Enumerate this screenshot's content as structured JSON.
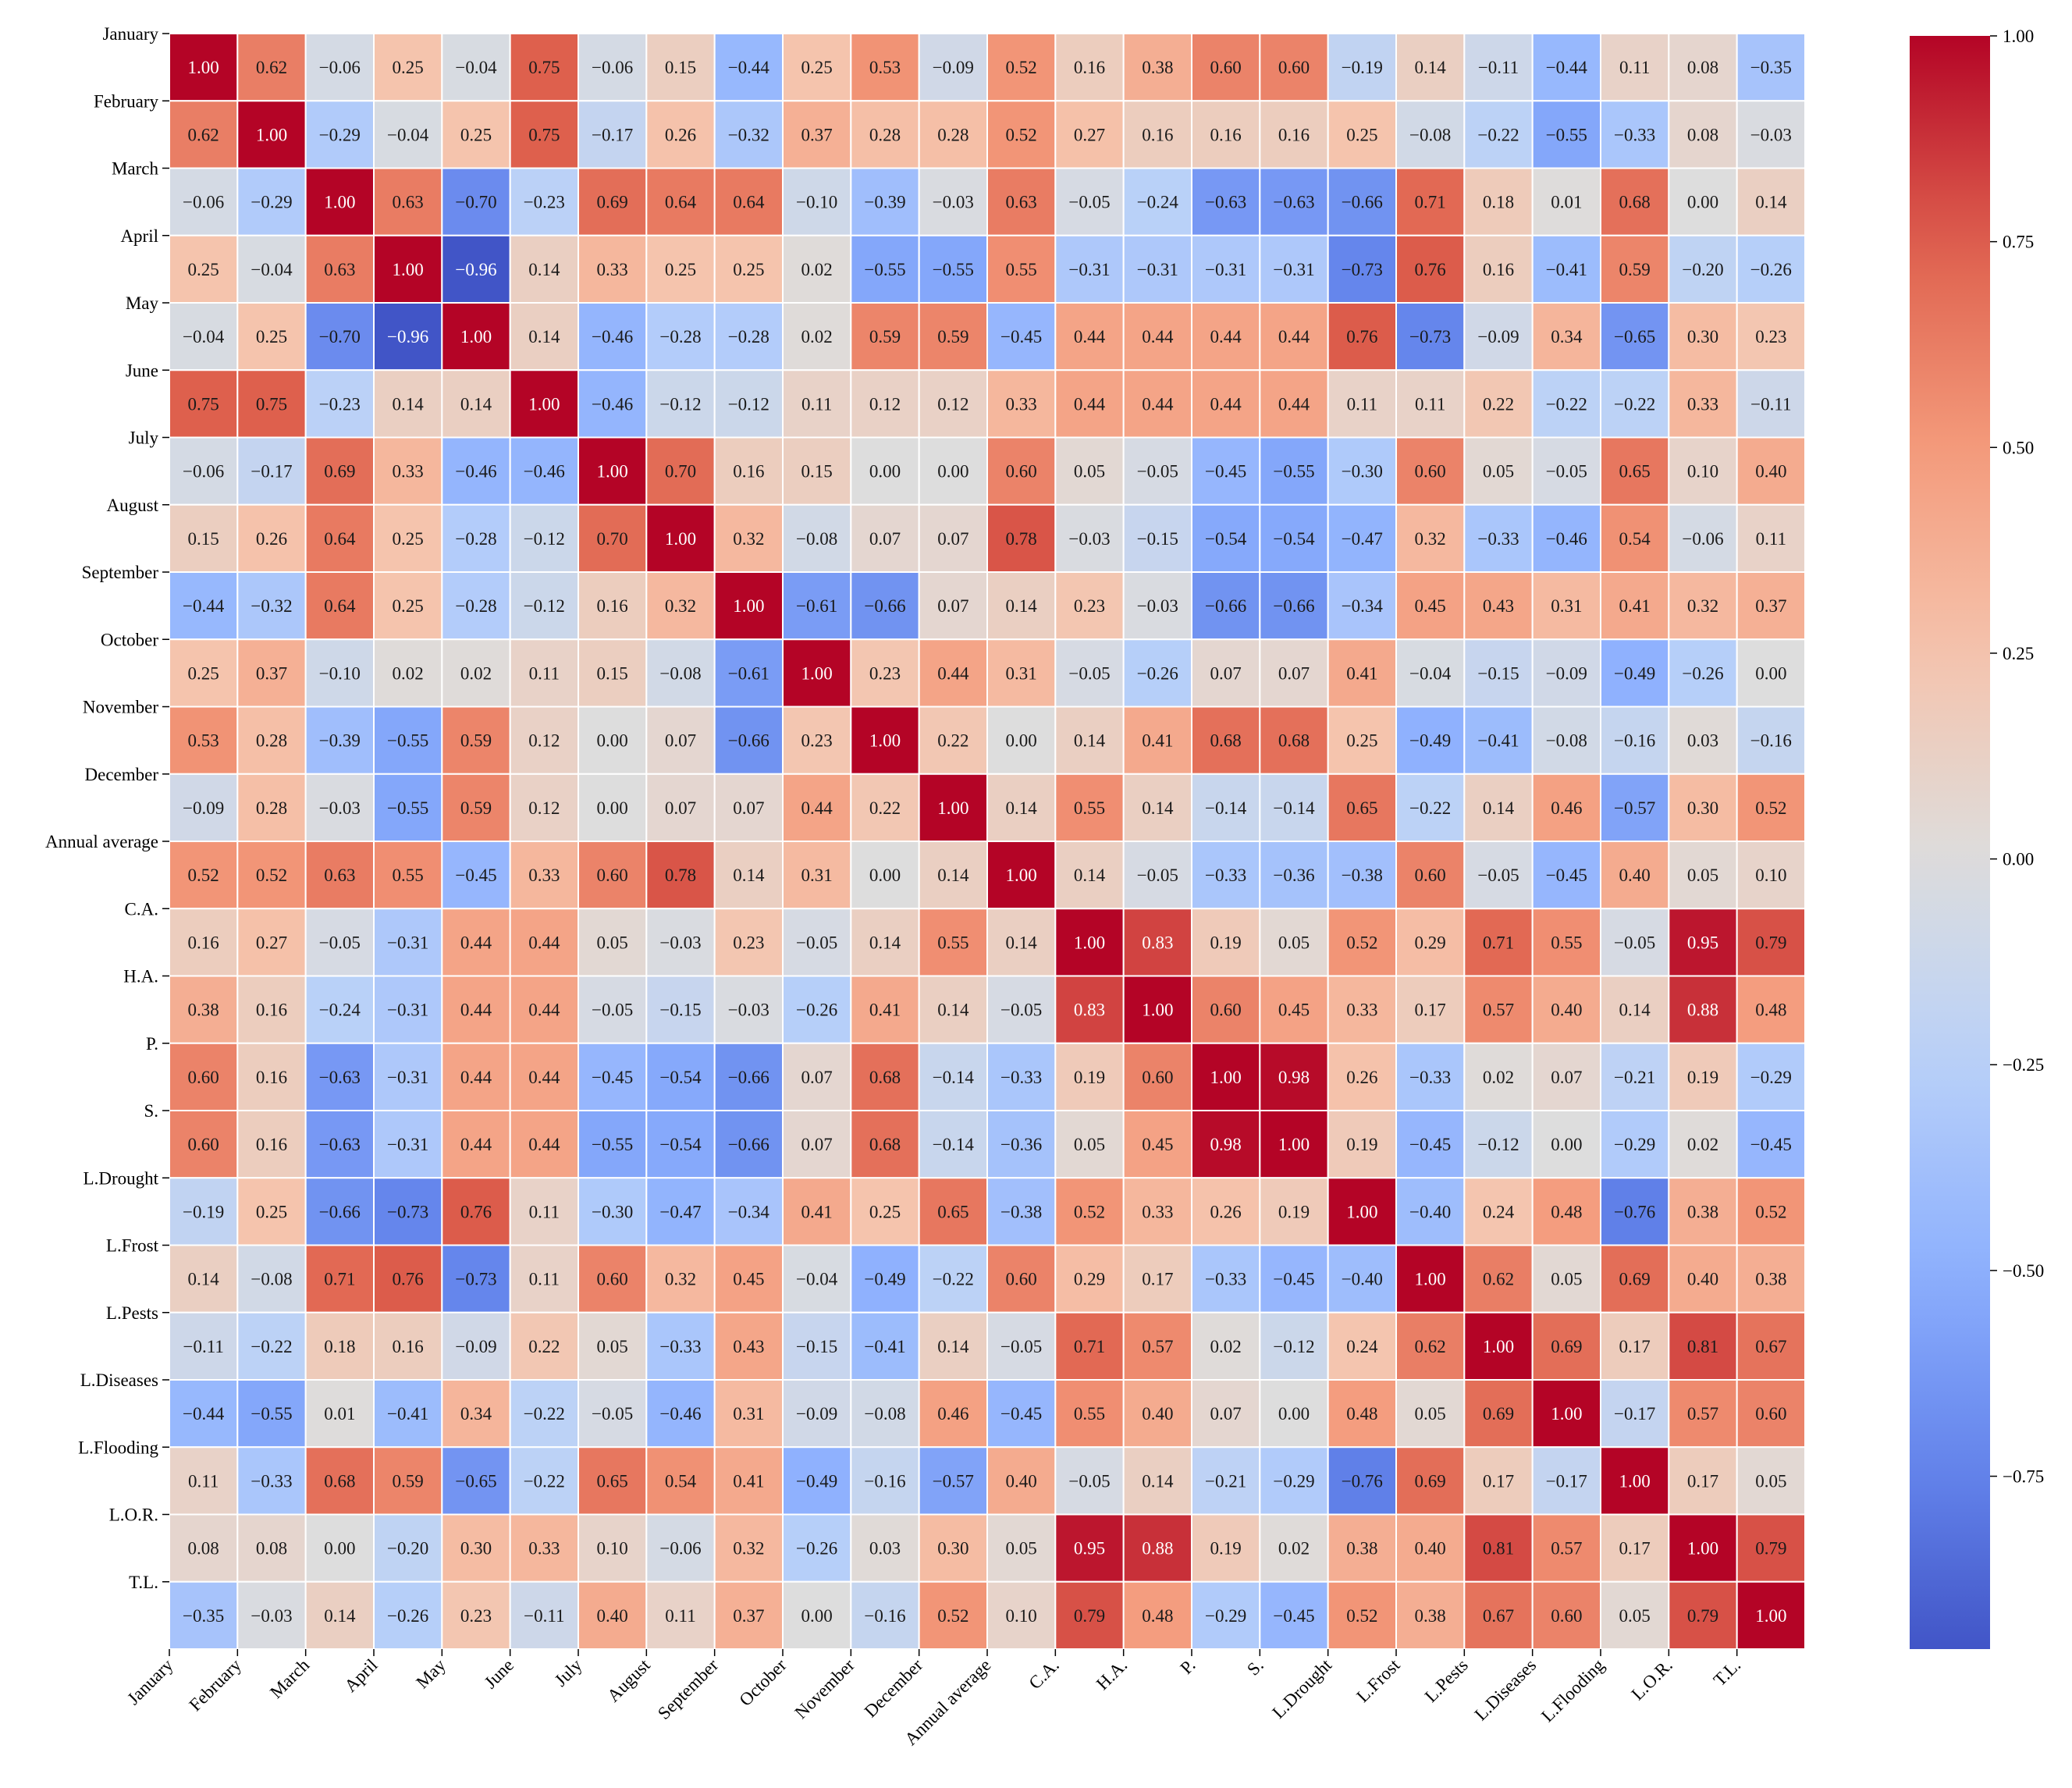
{
  "chart_data": {
    "type": "heatmap",
    "title": "",
    "xlabel": "",
    "ylabel": "",
    "labels": [
      "January",
      "February",
      "March",
      "April",
      "May",
      "June",
      "July",
      "August",
      "September",
      "October",
      "November",
      "December",
      "Annual average",
      "C.A.",
      "H.A.",
      "P.",
      "S.",
      "L.Drought",
      "L.Frost",
      "L.Pests",
      "L.Diseases",
      "L.Flooding",
      "L.O.R.",
      "T.L."
    ],
    "value_labels": [
      [
        "1.00",
        "0.62",
        "−0.06",
        "0.25",
        "−0.04",
        "0.75",
        "−0.06",
        "0.15",
        "−0.44",
        "0.25",
        "0.53",
        "−0.09",
        "0.52",
        "0.16",
        "0.38",
        "0.60",
        "0.60",
        "−0.19",
        "0.14",
        "−0.11",
        "−0.44",
        "0.11",
        "0.08",
        "−0.35"
      ],
      [
        "0.62",
        "1.00",
        "−0.29",
        "−0.04",
        "0.25",
        "0.75",
        "−0.17",
        "0.26",
        "−0.32",
        "0.37",
        "0.28",
        "0.28",
        "0.52",
        "0.27",
        "0.16",
        "0.16",
        "0.16",
        "0.25",
        "−0.08",
        "−0.22",
        "−0.55",
        "−0.33",
        "0.08",
        "−0.03"
      ],
      [
        "−0.06",
        "−0.29",
        "1.00",
        "0.63",
        "−0.70",
        "−0.23",
        "0.69",
        "0.64",
        "0.64",
        "−0.10",
        "−0.39",
        "−0.03",
        "0.63",
        "−0.05",
        "−0.24",
        "−0.63",
        "−0.63",
        "−0.66",
        "0.71",
        "0.18",
        "0.01",
        "0.68",
        "0.00",
        "0.14"
      ],
      [
        "0.25",
        "−0.04",
        "0.63",
        "1.00",
        "−0.96",
        "0.14",
        "0.33",
        "0.25",
        "0.25",
        "0.02",
        "−0.55",
        "−0.55",
        "0.55",
        "−0.31",
        "−0.31",
        "−0.31",
        "−0.31",
        "−0.73",
        "0.76",
        "0.16",
        "−0.41",
        "0.59",
        "−0.20",
        "−0.26"
      ],
      [
        "−0.04",
        "0.25",
        "−0.70",
        "−0.96",
        "1.00",
        "0.14",
        "−0.46",
        "−0.28",
        "−0.28",
        "0.02",
        "0.59",
        "0.59",
        "−0.45",
        "0.44",
        "0.44",
        "0.44",
        "0.44",
        "0.76",
        "−0.73",
        "−0.09",
        "0.34",
        "−0.65",
        "0.30",
        "0.23"
      ],
      [
        "0.75",
        "0.75",
        "−0.23",
        "0.14",
        "0.14",
        "1.00",
        "−0.46",
        "−0.12",
        "−0.12",
        "0.11",
        "0.12",
        "0.12",
        "0.33",
        "0.44",
        "0.44",
        "0.44",
        "0.44",
        "0.11",
        "0.11",
        "0.22",
        "−0.22",
        "−0.22",
        "0.33",
        "−0.11"
      ],
      [
        "−0.06",
        "−0.17",
        "0.69",
        "0.33",
        "−0.46",
        "−0.46",
        "1.00",
        "0.70",
        "0.16",
        "0.15",
        "0.00",
        "0.00",
        "0.60",
        "0.05",
        "−0.05",
        "−0.45",
        "−0.55",
        "−0.30",
        "0.60",
        "0.05",
        "−0.05",
        "0.65",
        "0.10",
        "0.40"
      ],
      [
        "0.15",
        "0.26",
        "0.64",
        "0.25",
        "−0.28",
        "−0.12",
        "0.70",
        "1.00",
        "0.32",
        "−0.08",
        "0.07",
        "0.07",
        "0.78",
        "−0.03",
        "−0.15",
        "−0.54",
        "−0.54",
        "−0.47",
        "0.32",
        "−0.33",
        "−0.46",
        "0.54",
        "−0.06",
        "0.11"
      ],
      [
        "−0.44",
        "−0.32",
        "0.64",
        "0.25",
        "−0.28",
        "−0.12",
        "0.16",
        "0.32",
        "1.00",
        "−0.61",
        "−0.66",
        "0.07",
        "0.14",
        "0.23",
        "−0.03",
        "−0.66",
        "−0.66",
        "−0.34",
        "0.45",
        "0.43",
        "0.31",
        "0.41",
        "0.32",
        "0.37"
      ],
      [
        "0.25",
        "0.37",
        "−0.10",
        "0.02",
        "0.02",
        "0.11",
        "0.15",
        "−0.08",
        "−0.61",
        "1.00",
        "0.23",
        "0.44",
        "0.31",
        "−0.05",
        "−0.26",
        "0.07",
        "0.07",
        "0.41",
        "−0.04",
        "−0.15",
        "−0.09",
        "−0.49",
        "−0.26",
        "0.00"
      ],
      [
        "0.53",
        "0.28",
        "−0.39",
        "−0.55",
        "0.59",
        "0.12",
        "0.00",
        "0.07",
        "−0.66",
        "0.23",
        "1.00",
        "0.22",
        "0.00",
        "0.14",
        "0.41",
        "0.68",
        "0.68",
        "0.25",
        "−0.49",
        "−0.41",
        "−0.08",
        "−0.16",
        "0.03",
        "−0.16"
      ],
      [
        "−0.09",
        "0.28",
        "−0.03",
        "−0.55",
        "0.59",
        "0.12",
        "0.00",
        "0.07",
        "0.07",
        "0.44",
        "0.22",
        "1.00",
        "0.14",
        "0.55",
        "0.14",
        "−0.14",
        "−0.14",
        "0.65",
        "−0.22",
        "0.14",
        "0.46",
        "−0.57",
        "0.30",
        "0.52"
      ],
      [
        "0.52",
        "0.52",
        "0.63",
        "0.55",
        "−0.45",
        "0.33",
        "0.60",
        "0.78",
        "0.14",
        "0.31",
        "0.00",
        "0.14",
        "1.00",
        "0.14",
        "−0.05",
        "−0.33",
        "−0.36",
        "−0.38",
        "0.60",
        "−0.05",
        "−0.45",
        "0.40",
        "0.05",
        "0.10"
      ],
      [
        "0.16",
        "0.27",
        "−0.05",
        "−0.31",
        "0.44",
        "0.44",
        "0.05",
        "−0.03",
        "0.23",
        "−0.05",
        "0.14",
        "0.55",
        "0.14",
        "1.00",
        "0.83",
        "0.19",
        "0.05",
        "0.52",
        "0.29",
        "0.71",
        "0.55",
        "−0.05",
        "0.95",
        "0.79"
      ],
      [
        "0.38",
        "0.16",
        "−0.24",
        "−0.31",
        "0.44",
        "0.44",
        "−0.05",
        "−0.15",
        "−0.03",
        "−0.26",
        "0.41",
        "0.14",
        "−0.05",
        "0.83",
        "1.00",
        "0.60",
        "0.45",
        "0.33",
        "0.17",
        "0.57",
        "0.40",
        "0.14",
        "0.88",
        "0.48"
      ],
      [
        "0.60",
        "0.16",
        "−0.63",
        "−0.31",
        "0.44",
        "0.44",
        "−0.45",
        "−0.54",
        "−0.66",
        "0.07",
        "0.68",
        "−0.14",
        "−0.33",
        "0.19",
        "0.60",
        "1.00",
        "0.98",
        "0.26",
        "−0.33",
        "0.02",
        "0.07",
        "−0.21",
        "0.19",
        "−0.29"
      ],
      [
        "0.60",
        "0.16",
        "−0.63",
        "−0.31",
        "0.44",
        "0.44",
        "−0.55",
        "−0.54",
        "−0.66",
        "0.07",
        "0.68",
        "−0.14",
        "−0.36",
        "0.05",
        "0.45",
        "0.98",
        "1.00",
        "0.19",
        "−0.45",
        "−0.12",
        "0.00",
        "−0.29",
        "0.02",
        "−0.45"
      ],
      [
        "−0.19",
        "0.25",
        "−0.66",
        "−0.73",
        "0.76",
        "0.11",
        "−0.30",
        "−0.47",
        "−0.34",
        "0.41",
        "0.25",
        "0.65",
        "−0.38",
        "0.52",
        "0.33",
        "0.26",
        "0.19",
        "1.00",
        "−0.40",
        "0.24",
        "0.48",
        "−0.76",
        "0.38",
        "0.52"
      ],
      [
        "0.14",
        "−0.08",
        "0.71",
        "0.76",
        "−0.73",
        "0.11",
        "0.60",
        "0.32",
        "0.45",
        "−0.04",
        "−0.49",
        "−0.22",
        "0.60",
        "0.29",
        "0.17",
        "−0.33",
        "−0.45",
        "−0.40",
        "1.00",
        "0.62",
        "0.05",
        "0.69",
        "0.40",
        "0.38"
      ],
      [
        "−0.11",
        "−0.22",
        "0.18",
        "0.16",
        "−0.09",
        "0.22",
        "0.05",
        "−0.33",
        "0.43",
        "−0.15",
        "−0.41",
        "0.14",
        "−0.05",
        "0.71",
        "0.57",
        "0.02",
        "−0.12",
        "0.24",
        "0.62",
        "1.00",
        "0.69",
        "0.17",
        "0.81",
        "0.67"
      ],
      [
        "−0.44",
        "−0.55",
        "0.01",
        "−0.41",
        "0.34",
        "−0.22",
        "−0.05",
        "−0.46",
        "0.31",
        "−0.09",
        "−0.08",
        "0.46",
        "−0.45",
        "0.55",
        "0.40",
        "0.07",
        "0.00",
        "0.48",
        "0.05",
        "0.69",
        "1.00",
        "−0.17",
        "0.57",
        "0.60"
      ],
      [
        "0.11",
        "−0.33",
        "0.68",
        "0.59",
        "−0.65",
        "−0.22",
        "0.65",
        "0.54",
        "0.41",
        "−0.49",
        "−0.16",
        "−0.57",
        "0.40",
        "−0.05",
        "0.14",
        "−0.21",
        "−0.29",
        "−0.76",
        "0.69",
        "0.17",
        "−0.17",
        "1.00",
        "0.17",
        "0.05"
      ],
      [
        "0.08",
        "0.08",
        "0.00",
        "−0.20",
        "0.30",
        "0.33",
        "0.10",
        "−0.06",
        "0.32",
        "−0.26",
        "0.03",
        "0.30",
        "0.05",
        "0.95",
        "0.88",
        "0.19",
        "0.02",
        "0.38",
        "0.40",
        "0.81",
        "0.57",
        "0.17",
        "1.00",
        "0.79"
      ],
      [
        "−0.35",
        "−0.03",
        "0.14",
        "−0.26",
        "0.23",
        "−0.11",
        "0.40",
        "0.11",
        "0.37",
        "0.00",
        "−0.16",
        "0.52",
        "0.10",
        "0.79",
        "0.48",
        "−0.29",
        "−0.45",
        "0.52",
        "0.38",
        "0.67",
        "0.60",
        "0.05",
        "0.79",
        "1.00"
      ]
    ],
    "colorbar": {
      "colormap": "coolwarm",
      "range": [
        -1.0,
        1.0
      ],
      "ticks": [
        "1.00",
        "0.75",
        "0.50",
        "0.25",
        "0.00",
        "−0.25",
        "−0.50",
        "−0.75"
      ],
      "tick_values": [
        1.0,
        0.75,
        0.5,
        0.25,
        0.0,
        -0.25,
        -0.5,
        -0.75
      ]
    }
  }
}
